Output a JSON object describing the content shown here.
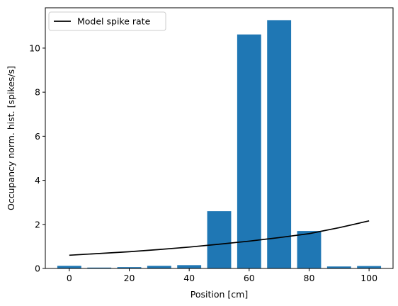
{
  "chart_data": {
    "type": "bar",
    "xlabel": "Position [cm]",
    "ylabel": "Occupancy norm. hist. [spikes/s]",
    "xlim": [
      -8,
      108
    ],
    "ylim": [
      0,
      11.83
    ],
    "x_ticks": [
      0,
      20,
      40,
      60,
      80,
      100
    ],
    "y_ticks": [
      0,
      2,
      4,
      6,
      8,
      10
    ],
    "bar_width": 8,
    "bars": {
      "x": [
        0,
        10,
        20,
        30,
        40,
        50,
        60,
        70,
        80,
        90,
        100
      ],
      "values": [
        0.12,
        0.04,
        0.06,
        0.12,
        0.15,
        2.6,
        10.62,
        11.27,
        1.7,
        0.09,
        0.11
      ],
      "color": "#1f77b4"
    },
    "series": [
      {
        "name": "Model spike rate",
        "type": "line",
        "color": "#000000",
        "x": [
          0,
          10,
          20,
          30,
          40,
          50,
          60,
          70,
          80,
          90,
          100
        ],
        "values": [
          0.6,
          0.68,
          0.76,
          0.86,
          0.97,
          1.1,
          1.24,
          1.4,
          1.58,
          1.85,
          2.16
        ]
      }
    ],
    "legend": {
      "position": "top-left"
    },
    "grid": false
  }
}
